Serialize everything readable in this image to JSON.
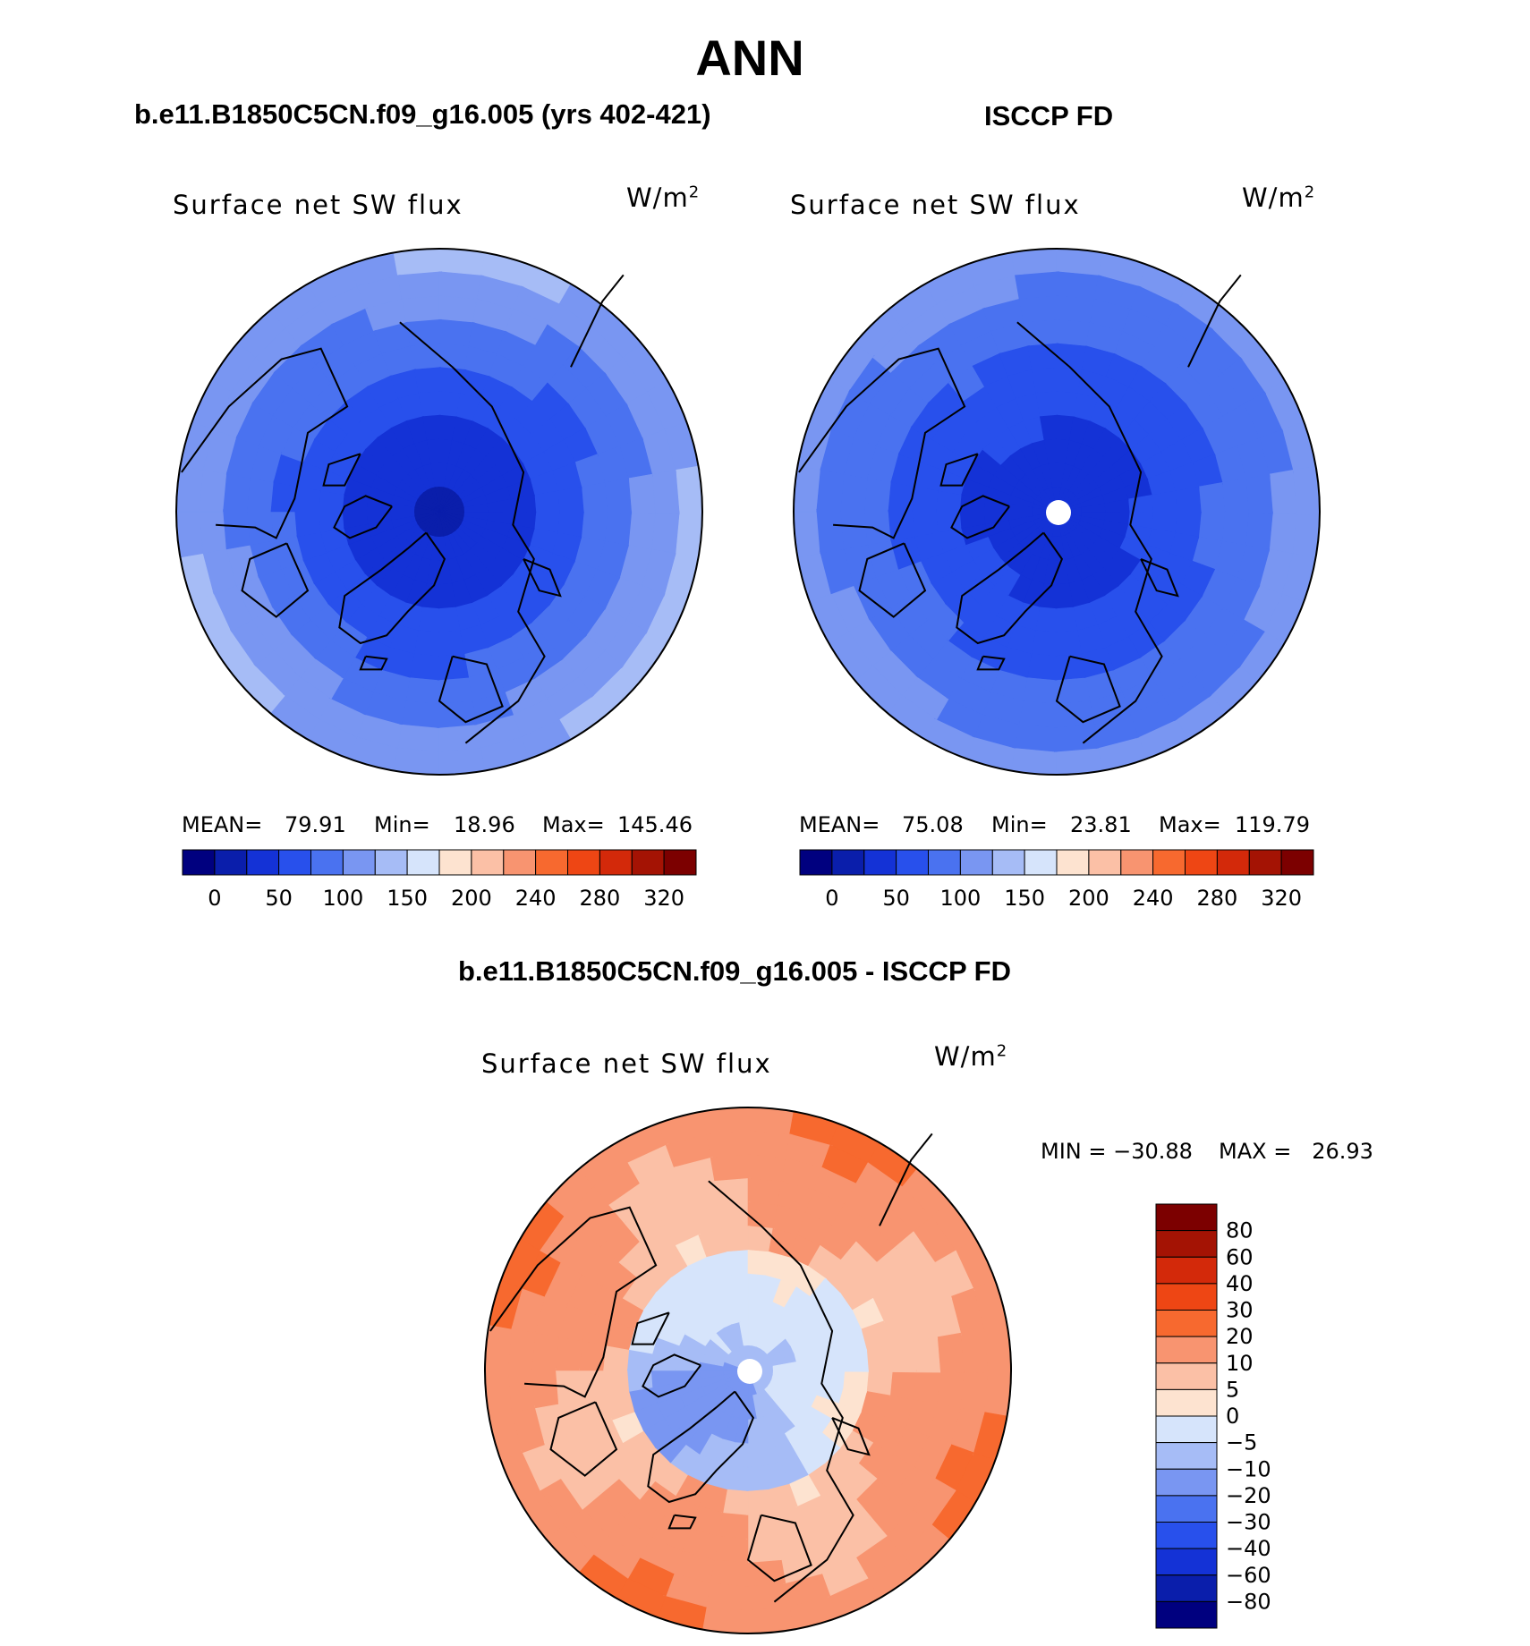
{
  "header": {
    "title": "ANN",
    "left_title": "b.e11.B1850C5CN.f09_g16.005 (yrs 402-421)",
    "right_title": "ISCCP FD",
    "diff_title": "b.e11.B1850C5CN.f09_g16.005 - ISCCP FD"
  },
  "colors": {
    "abs_scale": [
      "#00007f",
      "#0a1eab",
      "#1432d6",
      "#2850ec",
      "#4a72f0",
      "#7996f2",
      "#a6bcf6",
      "#d6e4fb",
      "#fde3d0",
      "#fbc0a6",
      "#f89470",
      "#f7692f",
      "#ee4614",
      "#d3290a",
      "#a41304",
      "#7c0000"
    ],
    "diff_scale": [
      "#00007f",
      "#0a1eab",
      "#1432d6",
      "#2850ec",
      "#4a72f0",
      "#7996f2",
      "#a6bcf6",
      "#d6e4fb",
      "#fde3d0",
      "#fbc0a6",
      "#f89470",
      "#f7692f",
      "#ee4614",
      "#d3290a",
      "#a41304",
      "#7c0000"
    ]
  },
  "chart_data": [
    {
      "type": "heatmap",
      "projection": "north-polar-stereographic",
      "title": "b.e11.B1850C5CN.f09_g16.005 (yrs 402-421)",
      "variable": "Surface net SW flux",
      "units": "W/m",
      "units_exp": "2",
      "stats": {
        "mean": 79.91,
        "min": 18.96,
        "max": 145.46
      },
      "stats_labels": {
        "mean": "MEAN=",
        "min": "Min=",
        "max": "Max="
      },
      "stats_text": {
        "mean": "79.91",
        "min": "18.96",
        "max": "145.46"
      },
      "levels": [
        0,
        25,
        50,
        75,
        100,
        125,
        150,
        175,
        200,
        220,
        240,
        260,
        280,
        300,
        320
      ],
      "tick_labels": [
        "0",
        "50",
        "100",
        "150",
        "200",
        "240",
        "280",
        "320"
      ],
      "field": {
        "pole_value": 20,
        "edge_value": 130
      }
    },
    {
      "type": "heatmap",
      "projection": "north-polar-stereographic",
      "title": "ISCCP FD",
      "variable": "Surface net SW flux",
      "units": "W/m",
      "units_exp": "2",
      "stats": {
        "mean": 75.08,
        "min": 23.81,
        "max": 119.79
      },
      "stats_labels": {
        "mean": "MEAN=",
        "min": "Min=",
        "max": "Max="
      },
      "stats_text": {
        "mean": "75.08",
        "min": "23.81",
        "max": "119.79"
      },
      "levels": [
        0,
        25,
        50,
        75,
        100,
        125,
        150,
        175,
        200,
        220,
        240,
        260,
        280,
        300,
        320
      ],
      "tick_labels": [
        "0",
        "50",
        "100",
        "150",
        "200",
        "240",
        "280",
        "320"
      ],
      "field": {
        "pole_value": 30,
        "edge_value": 112,
        "missing_at_pole": true
      }
    },
    {
      "type": "heatmap",
      "projection": "north-polar-stereographic",
      "title": "b.e11.B1850C5CN.f09_g16.005 - ISCCP FD",
      "variable": "Surface net SW flux",
      "units": "W/m",
      "units_exp": "2",
      "stats": {
        "min": -30.88,
        "max": 26.93
      },
      "stats_text": {
        "min": "MIN = −30.88",
        "max": "MAX =   26.93"
      },
      "levels": [
        -80,
        -60,
        -40,
        -30,
        -20,
        -10,
        -5,
        0,
        5,
        10,
        20,
        30,
        40,
        60,
        80
      ],
      "tick_labels": [
        "80",
        "60",
        "40",
        "30",
        "20",
        "10",
        "5",
        "0",
        "−5",
        "−10",
        "−20",
        "−30",
        "−40",
        "−60",
        "−80"
      ],
      "field": {
        "pole_value": 0,
        "edge_value": 18,
        "missing_at_pole": true
      }
    }
  ]
}
